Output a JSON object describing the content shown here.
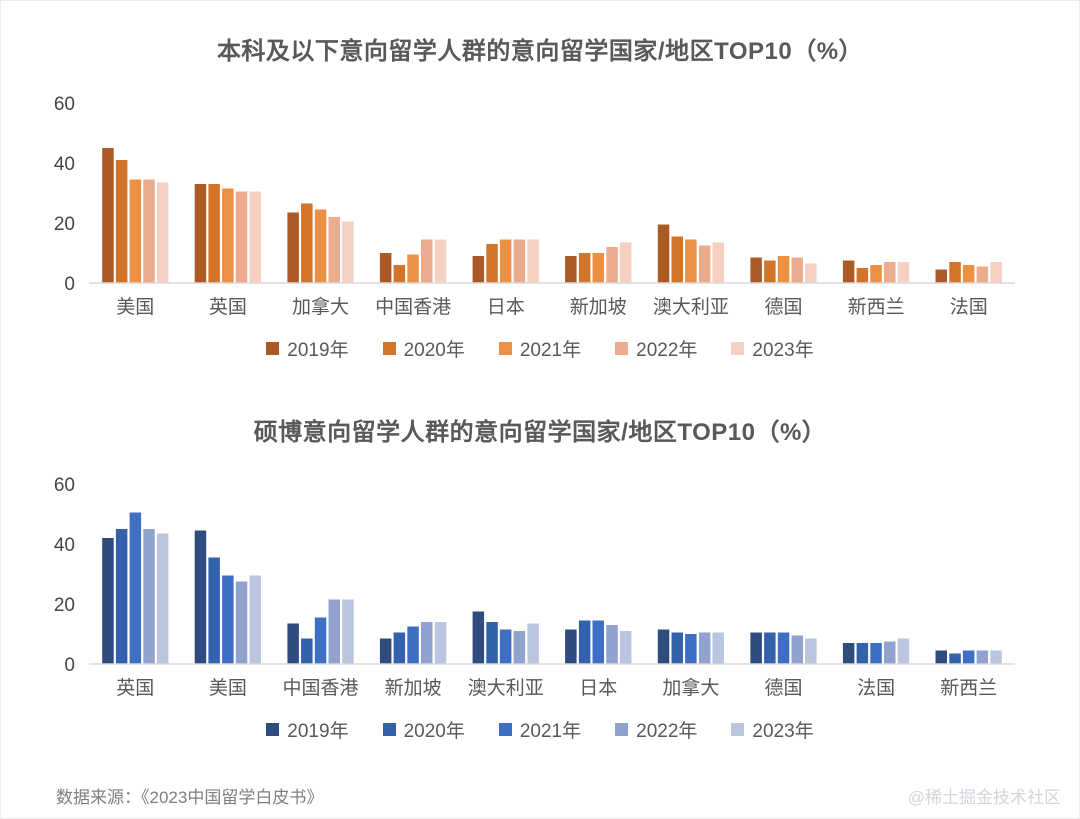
{
  "footer": {
    "source": "数据来源：《2023中国留学白皮书》",
    "watermark": "@稀土掘金技术社区"
  },
  "chart_data": [
    {
      "type": "bar",
      "title": "本科及以下意向留学人群的意向留学国家/地区TOP10（%）",
      "categories": [
        "美国",
        "英国",
        "加拿大",
        "中国香港",
        "日本",
        "新加坡",
        "澳大利亚",
        "德国",
        "新西兰",
        "法国"
      ],
      "series": [
        {
          "name": "2019年",
          "color": "#AC5A25",
          "values": [
            45,
            33,
            23.5,
            10,
            9,
            9,
            19.5,
            8.5,
            7.5,
            4.5
          ]
        },
        {
          "name": "2020年",
          "color": "#D27429",
          "values": [
            41,
            33,
            26.5,
            6,
            13,
            10,
            15.5,
            7.5,
            5,
            7
          ]
        },
        {
          "name": "2021年",
          "color": "#EC9044",
          "values": [
            34.5,
            31.5,
            24.5,
            9.5,
            14.5,
            10,
            14.5,
            9,
            6,
            6
          ]
        },
        {
          "name": "2022年",
          "color": "#EDAB8D",
          "values": [
            34.5,
            30.5,
            22,
            14.5,
            14.5,
            12,
            12.5,
            8.5,
            7,
            5.5
          ]
        },
        {
          "name": "2023年",
          "color": "#F5CFC2",
          "values": [
            33.5,
            30.5,
            20.5,
            14.5,
            14.5,
            13.5,
            13.5,
            6.5,
            7,
            7
          ]
        }
      ],
      "ylim": [
        0,
        60
      ],
      "yticks": [
        0,
        20,
        40,
        60
      ],
      "grid": false,
      "legend_position": "bottom"
    },
    {
      "type": "bar",
      "title": "硕博意向留学人群的意向留学国家/地区TOP10（%）",
      "categories": [
        "英国",
        "美国",
        "中国香港",
        "新加坡",
        "澳大利亚",
        "日本",
        "加拿大",
        "德国",
        "法国",
        "新西兰"
      ],
      "series": [
        {
          "name": "2019年",
          "color": "#2E4D7E",
          "values": [
            42,
            44.5,
            13.5,
            8.5,
            17.5,
            11.5,
            11.5,
            10.5,
            7,
            4.5
          ]
        },
        {
          "name": "2020年",
          "color": "#3361AB",
          "values": [
            45,
            35.5,
            8.5,
            10.5,
            14,
            14.5,
            10.5,
            10.5,
            7,
            3.5
          ]
        },
        {
          "name": "2021年",
          "color": "#3F6FC4",
          "values": [
            50.5,
            29.5,
            15.5,
            12.5,
            11.5,
            14.5,
            10,
            10.5,
            7,
            4.5
          ]
        },
        {
          "name": "2022年",
          "color": "#92A2CF",
          "values": [
            45,
            27.5,
            21.5,
            14,
            11,
            13,
            10.5,
            9.5,
            7.5,
            4.5
          ]
        },
        {
          "name": "2023年",
          "color": "#BAC5E0",
          "values": [
            43.5,
            29.5,
            21.5,
            14,
            13.5,
            11,
            10.5,
            8.5,
            8.5,
            4.5
          ]
        }
      ],
      "ylim": [
        0,
        60
      ],
      "yticks": [
        0,
        20,
        40,
        60
      ],
      "grid": false,
      "legend_position": "bottom"
    }
  ]
}
